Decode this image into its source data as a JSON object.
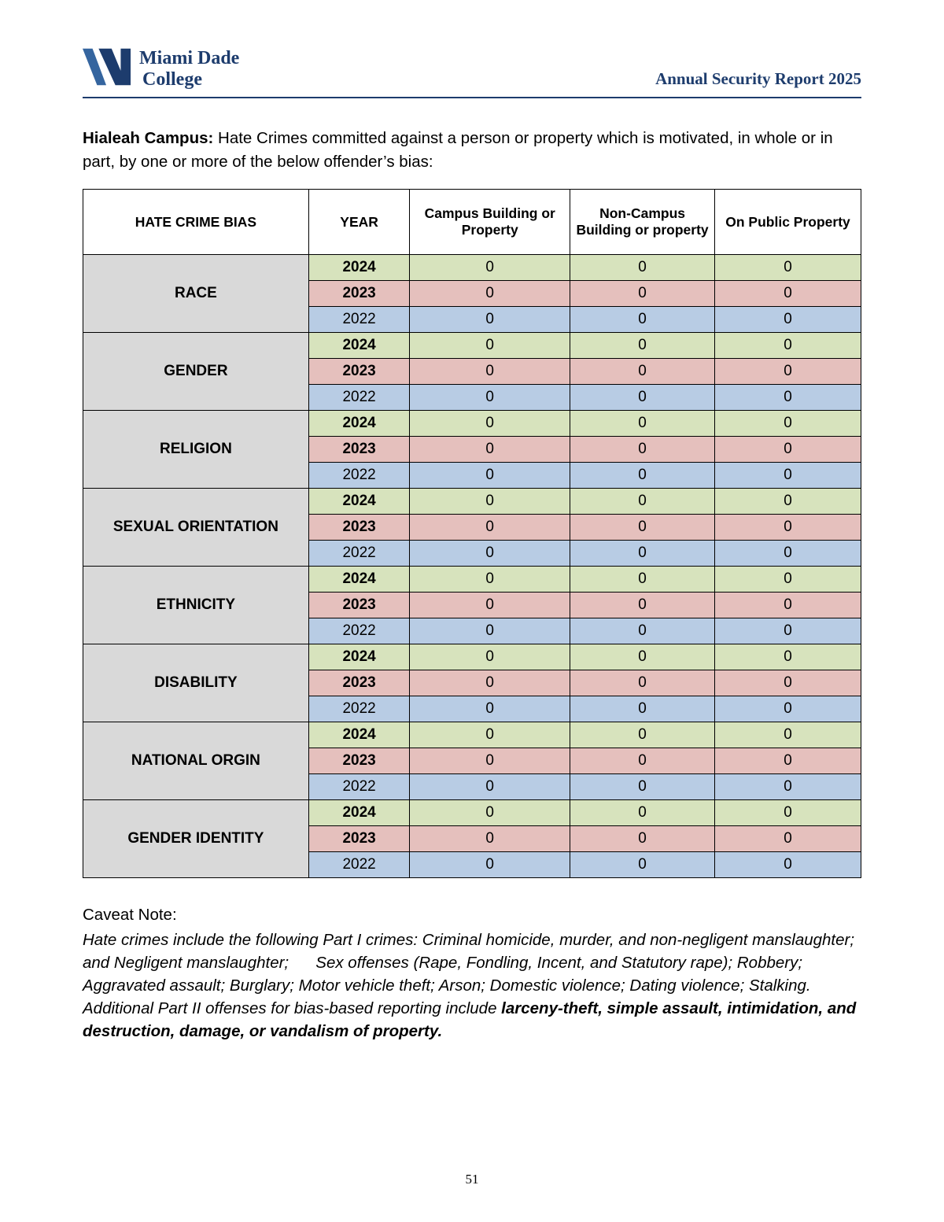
{
  "header": {
    "logo_line1": "Miami Dade",
    "logo_line2": "College",
    "report_title": "Annual Security Report 2025"
  },
  "intro": {
    "label": "Hialeah Campus:",
    "text": "Hate Crimes committed against a person or property which is motivated, in whole or in part, by one or more of the below offender’s bias:"
  },
  "table": {
    "columns": [
      "HATE CRIME BIAS",
      "YEAR",
      "Campus Building or Property",
      "Non-Campus Building or property",
      "On Public Property"
    ],
    "year_colors": {
      "2024": "#d7e3bd",
      "2023": "#e5c0bd",
      "2022": "#b8cce4"
    },
    "bold_years": [
      "2024",
      "2023"
    ],
    "category_color": "#d9d9d9",
    "categories": [
      {
        "name": "RACE",
        "rows": [
          {
            "year": "2024",
            "values": [
              "0",
              "0",
              "0"
            ]
          },
          {
            "year": "2023",
            "values": [
              "0",
              "0",
              "0"
            ]
          },
          {
            "year": "2022",
            "values": [
              "0",
              "0",
              "0"
            ]
          }
        ]
      },
      {
        "name": "GENDER",
        "rows": [
          {
            "year": "2024",
            "values": [
              "0",
              "0",
              "0"
            ]
          },
          {
            "year": "2023",
            "values": [
              "0",
              "0",
              "0"
            ]
          },
          {
            "year": "2022",
            "values": [
              "0",
              "0",
              "0"
            ]
          }
        ]
      },
      {
        "name": "RELIGION",
        "rows": [
          {
            "year": "2024",
            "values": [
              "0",
              "0",
              "0"
            ]
          },
          {
            "year": "2023",
            "values": [
              "0",
              "0",
              "0"
            ]
          },
          {
            "year": "2022",
            "values": [
              "0",
              "0",
              "0"
            ]
          }
        ]
      },
      {
        "name": "SEXUAL ORIENTATION",
        "rows": [
          {
            "year": "2024",
            "values": [
              "0",
              "0",
              "0"
            ]
          },
          {
            "year": "2023",
            "values": [
              "0",
              "0",
              "0"
            ]
          },
          {
            "year": "2022",
            "values": [
              "0",
              "0",
              "0"
            ]
          }
        ]
      },
      {
        "name": "ETHNICITY",
        "rows": [
          {
            "year": "2024",
            "values": [
              "0",
              "0",
              "0"
            ]
          },
          {
            "year": "2023",
            "values": [
              "0",
              "0",
              "0"
            ]
          },
          {
            "year": "2022",
            "values": [
              "0",
              "0",
              "0"
            ]
          }
        ]
      },
      {
        "name": "DISABILITY",
        "rows": [
          {
            "year": "2024",
            "values": [
              "0",
              "0",
              "0"
            ]
          },
          {
            "year": "2023",
            "values": [
              "0",
              "0",
              "0"
            ]
          },
          {
            "year": "2022",
            "values": [
              "0",
              "0",
              "0"
            ]
          }
        ]
      },
      {
        "name": "NATIONAL ORGIN",
        "rows": [
          {
            "year": "2024",
            "values": [
              "0",
              "0",
              "0"
            ]
          },
          {
            "year": "2023",
            "values": [
              "0",
              "0",
              "0"
            ]
          },
          {
            "year": "2022",
            "values": [
              "0",
              "0",
              "0"
            ]
          }
        ]
      },
      {
        "name": "GENDER IDENTITY",
        "rows": [
          {
            "year": "2024",
            "values": [
              "0",
              "0",
              "0"
            ]
          },
          {
            "year": "2023",
            "values": [
              "0",
              "0",
              "0"
            ]
          },
          {
            "year": "2022",
            "values": [
              "0",
              "0",
              "0"
            ]
          }
        ]
      }
    ]
  },
  "caveat": {
    "label": "Caveat Note:",
    "italic_text": "Hate crimes include the following Part I crimes: Criminal homicide, murder, and non-negligent manslaughter; and Negligent manslaughter;      Sex offenses (Rape, Fondling, Incent, and Statutory rape); Robbery; Aggravated assault; Burglary; Motor vehicle theft; Arson; Domestic violence; Dating violence; Stalking.  Additional Part II offenses for bias-based reporting include ",
    "bold_italic_text": "larceny-theft, simple assault, intimidation, and destruction, damage, or vandalism of property."
  },
  "page_number": "51"
}
